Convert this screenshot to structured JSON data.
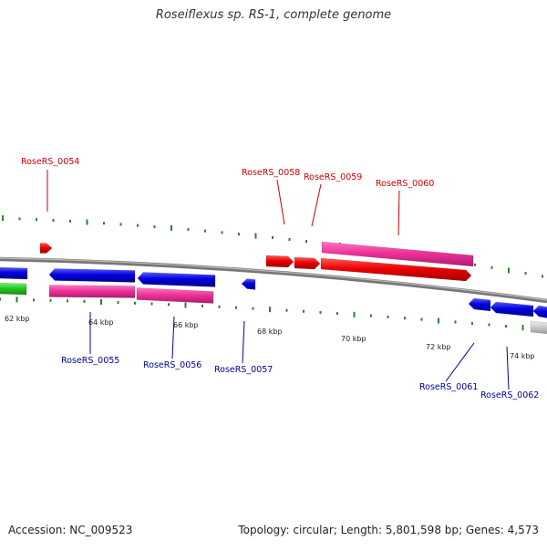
{
  "header": {
    "title": "Roseiflexus sp. RS-1, complete genome"
  },
  "footer": {
    "accession": "Accession: NC_009523",
    "summary": "Topology: circular; Length: 5,801,598 bp; Genes: 4,573"
  },
  "colors": {
    "forward_label": "#cc0000",
    "reverse_label": "#000099",
    "red_gene": "#ee0000",
    "pink_gene": "#ee3399",
    "blue_gene": "#0000dd",
    "green_gene": "#22cc22",
    "grey_gene": "#c8c8c8",
    "backbone": "#888888",
    "tick": "#2d7d2d"
  },
  "scale": {
    "ticks": [
      "62 kbp",
      "64 kbp",
      "66 kbp",
      "68 kbp",
      "70 kbp",
      "72 kbp",
      "74 kbp"
    ]
  },
  "gene_labels": {
    "forward": [
      "RoseRS_0054",
      "RoseRS_0058",
      "RoseRS_0059",
      "RoseRS_0060"
    ],
    "reverse": [
      "RoseRS_0055",
      "RoseRS_0056",
      "RoseRS_0057",
      "RoseRS_0061",
      "RoseRS_0062"
    ]
  }
}
